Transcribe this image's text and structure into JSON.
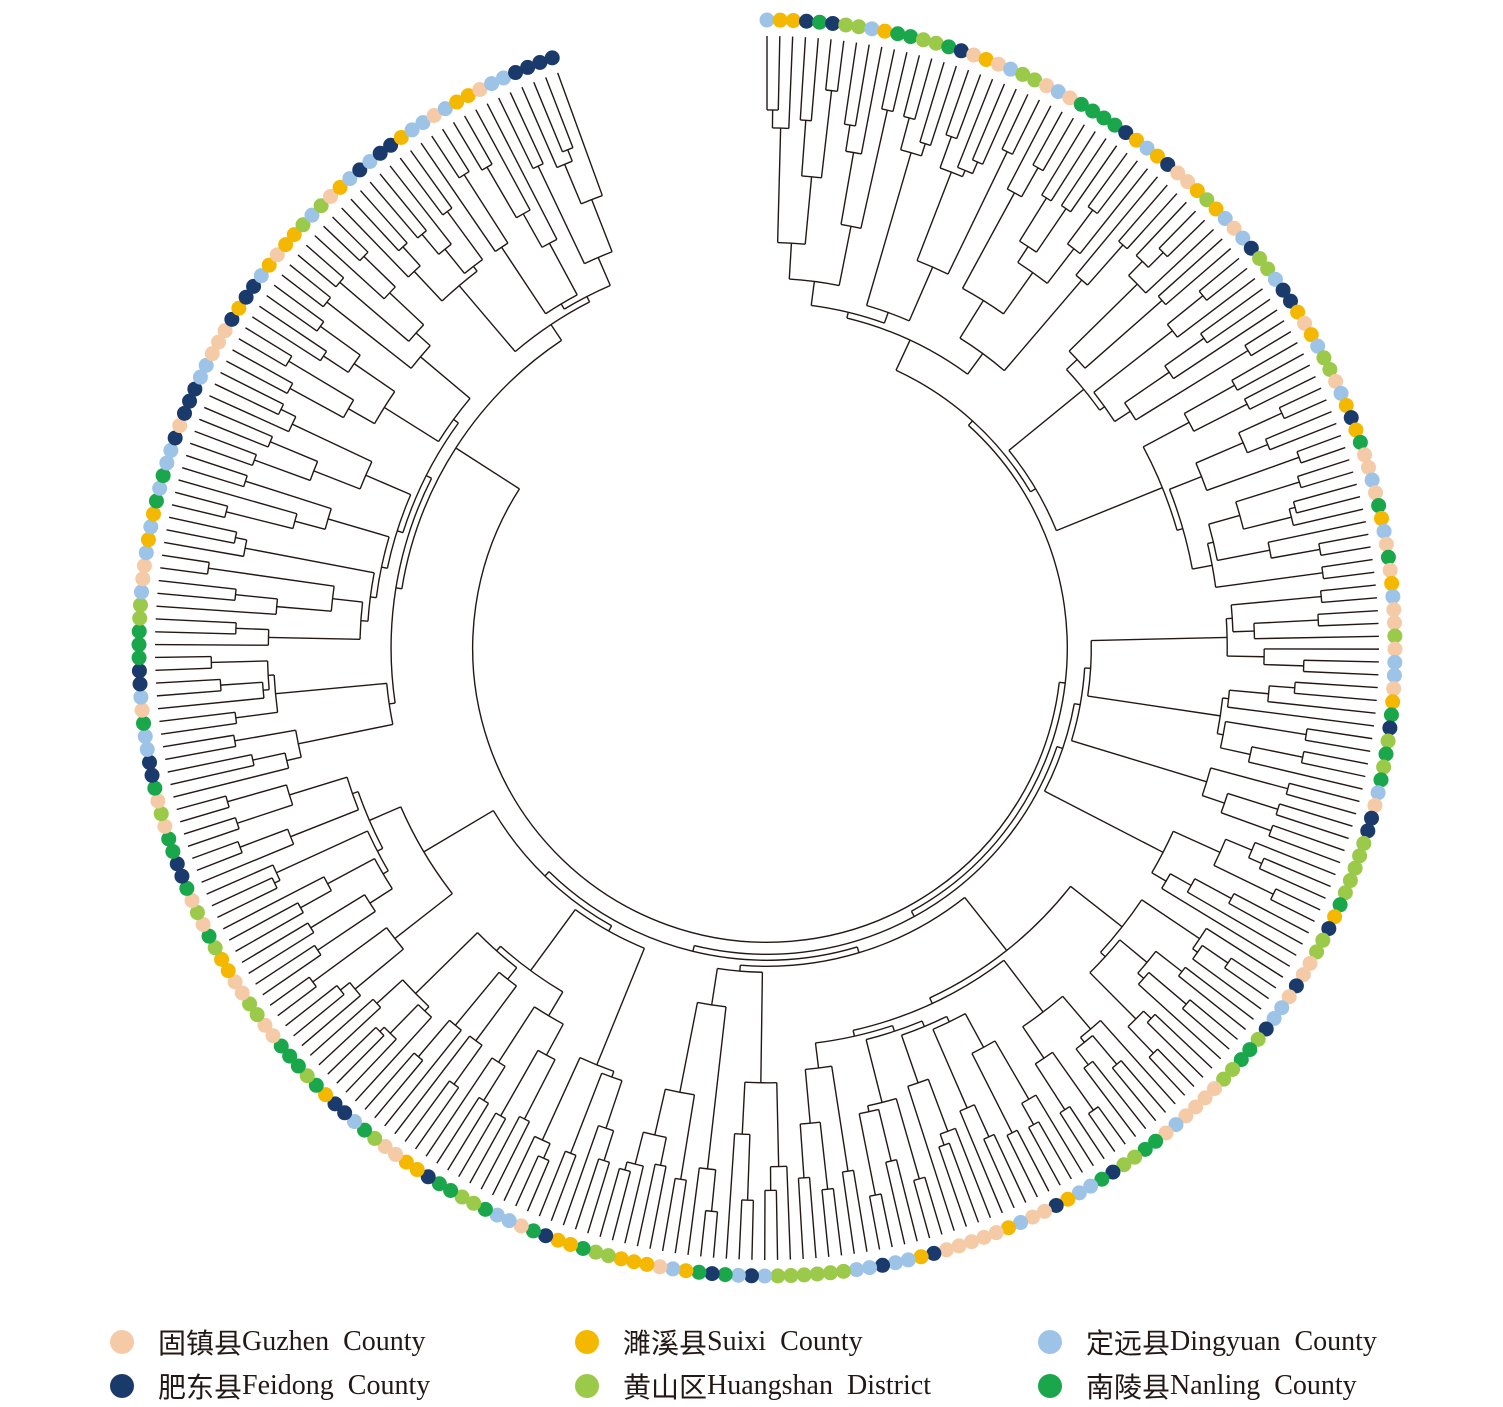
{
  "legend": [
    {
      "key": "G",
      "zh": "固镇县",
      "en": "Guzhen  County",
      "color": "#f5cba7"
    },
    {
      "key": "S",
      "zh": "濉溪县",
      "en": "Suixi  County",
      "color": "#f5b800"
    },
    {
      "key": "D",
      "zh": "定远县",
      "en": "Dingyuan  County",
      "color": "#9dc3e6"
    },
    {
      "key": "F",
      "zh": "肥东县",
      "en": "Feidong  County",
      "color": "#1a3a6b"
    },
    {
      "key": "H",
      "zh": "黄山区",
      "en": "Huangshan  District",
      "color": "#9bc94a"
    },
    {
      "key": "N",
      "zh": "南陵县",
      "en": "Nanling  County",
      "color": "#1aa64a"
    }
  ],
  "leaf_groups": "DSSFNFHHDSNNHHNFGSGDHHGDGNNNNFSDSFGGSHSDGDFHHDFFSGSDHHGDSFSNGGDGNSDGNGSDGGHGDDGSNFHNHNDGFFHHHHHNSFHHGGFGDDFHNNHHGGGGDGNNHHFNDDSFGGDSGGGGGFSDDFDDHHHHHHDFDNFNSDGSSSHHNSSFNGDDNHHNNFSSGGHNDFFSNHNNNGGHHGGSSHNGHGNFFNNGHGNFFDDNGDFFNNNHHDGGDSDSNDNDDFGFFFDDGGGFSFFDSGSSHDHGSDFDFFSDDGDSSGDDFFFF"
}
